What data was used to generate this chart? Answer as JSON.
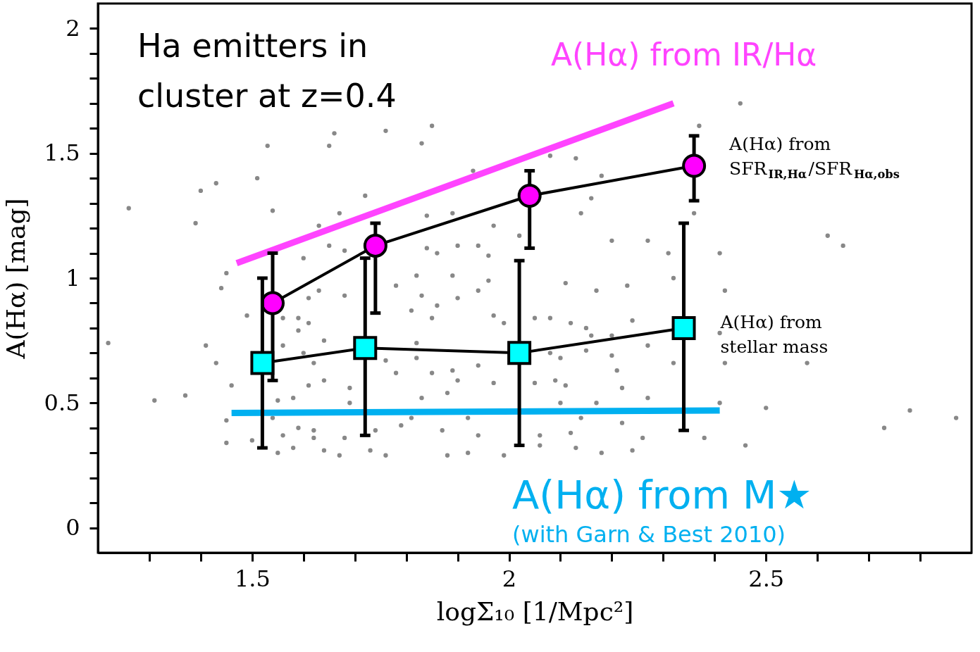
{
  "chart_data": {
    "type": "line",
    "xlabel": "logΣ₁₀ [1/Mpc²]",
    "ylabel": "A(Hα) [mag]",
    "xlim": [
      1.2,
      2.9
    ],
    "ylim": [
      -0.1,
      2.1
    ],
    "xticks": [
      {
        "value": 1.3,
        "label": null
      },
      {
        "value": 1.4,
        "label": null
      },
      1.5,
      {
        "value": 1.6,
        "label": null
      },
      {
        "value": 1.7,
        "label": null
      },
      {
        "value": 1.8,
        "label": null
      },
      {
        "value": 1.9,
        "label": null
      },
      2,
      {
        "value": 2.1,
        "label": null
      },
      {
        "value": 2.2,
        "label": null
      },
      {
        "value": 2.3,
        "label": null
      },
      {
        "value": 2.4,
        "label": null
      },
      2.5,
      {
        "value": 2.6,
        "label": null
      },
      {
        "value": 2.7,
        "label": null
      },
      {
        "value": 2.8,
        "label": null
      }
    ],
    "yticks": [
      0,
      {
        "value": 0.1,
        "label": null
      },
      {
        "value": 0.2,
        "label": null
      },
      {
        "value": 0.3,
        "label": null
      },
      {
        "value": 0.4,
        "label": null
      },
      0.5,
      {
        "value": 0.6,
        "label": null
      },
      {
        "value": 0.7,
        "label": null
      },
      {
        "value": 0.8,
        "label": null
      },
      {
        "value": 0.9,
        "label": null
      },
      1,
      {
        "value": 1.1,
        "label": null
      },
      {
        "value": 1.2,
        "label": null
      },
      {
        "value": 1.3,
        "label": null
      },
      {
        "value": 1.4,
        "label": null
      },
      1.5,
      {
        "value": 1.6,
        "label": null
      },
      {
        "value": 1.7,
        "label": null
      },
      {
        "value": 1.8,
        "label": null
      },
      {
        "value": 1.9,
        "label": null
      },
      2
    ],
    "grid": false,
    "annotations": [
      "Ha emitters in cluster at z=0.4",
      "(with Garn & Best 2010)"
    ],
    "series": [
      {
        "type": "scatter",
        "color": "#888888",
        "marker": "circle",
        "x": [
          1.26,
          1.39,
          1.4,
          1.43,
          1.51,
          1.53,
          1.65,
          1.66,
          1.76,
          1.54,
          1.67,
          1.63,
          1.72,
          1.45,
          1.44,
          1.6,
          1.65,
          1.68,
          1.61,
          1.63,
          1.68,
          1.49,
          1.56,
          1.59,
          1.61,
          1.59,
          1.22,
          1.41,
          1.56,
          1.6,
          1.64,
          1.43,
          1.62,
          1.76,
          1.46,
          1.61,
          1.64,
          1.69,
          1.31,
          1.37,
          1.55,
          1.58,
          1.69,
          1.45,
          1.54,
          1.59,
          1.62,
          1.56,
          1.62,
          1.68,
          1.74,
          1.45,
          1.5,
          1.55,
          1.58,
          1.64,
          1.67,
          1.73,
          1.76,
          1.78,
          1.78,
          1.79,
          1.83,
          1.85,
          1.93,
          2.08,
          2.13,
          2.18,
          2.16,
          2.37,
          2.36,
          1.84,
          1.89,
          1.97,
          2.02,
          2.14,
          1.84,
          1.9,
          1.94,
          1.86,
          1.96,
          1.82,
          1.89,
          1.96,
          1.94,
          1.83,
          1.9,
          1.86,
          1.81,
          1.85,
          1.97,
          1.99,
          2.05,
          2.08,
          2.11,
          2.17,
          2.23,
          2.2,
          2.27,
          2.31,
          2.32,
          2.12,
          2.15,
          2.16,
          2.2,
          2.24,
          2.27,
          1.82,
          1.82,
          2.08,
          2.1,
          2.15,
          2.2,
          1.85,
          1.89,
          1.94,
          1.9,
          1.97,
          2.05,
          2.09,
          2.11,
          2.21,
          2.22,
          2.32,
          1.88,
          1.83,
          2.1,
          2.17,
          2.27,
          1.81,
          1.92,
          2.14,
          1.87,
          1.94,
          2.06,
          2.12,
          2.22,
          2.26,
          2.38,
          2.06,
          1.88,
          1.92,
          1.99,
          2.13,
          2.18,
          2.24,
          2.45,
          2.41,
          2.42,
          2.41,
          2.42,
          2.58,
          2.41,
          2.5,
          2.78,
          2.73,
          2.46,
          2.62,
          2.65,
          2.87
        ],
        "values": [
          1.28,
          1.22,
          1.35,
          1.38,
          1.4,
          1.53,
          1.53,
          1.58,
          1.59,
          1.27,
          1.26,
          1.21,
          1.33,
          1.02,
          0.96,
          1.08,
          1.13,
          1.11,
          0.92,
          0.95,
          0.93,
          0.85,
          0.84,
          0.84,
          0.82,
          0.79,
          0.74,
          0.73,
          0.73,
          0.7,
          0.75,
          0.66,
          0.66,
          0.67,
          0.57,
          0.57,
          0.59,
          0.56,
          0.51,
          0.53,
          0.51,
          0.52,
          0.5,
          0.43,
          0.44,
          0.4,
          0.39,
          0.37,
          0.36,
          0.36,
          0.39,
          0.34,
          0.35,
          0.3,
          0.32,
          0.31,
          0.29,
          0.31,
          0.29,
          0.62,
          0.97,
          0.41,
          1.54,
          1.61,
          1.43,
          1.49,
          1.48,
          1.41,
          1.32,
          1.61,
          1.26,
          1.25,
          1.26,
          1.21,
          1.17,
          1.26,
          1.12,
          1.13,
          1.13,
          1.1,
          1.09,
          1.01,
          1.01,
          0.99,
          0.95,
          0.93,
          0.92,
          0.89,
          0.87,
          0.84,
          0.85,
          0.82,
          0.84,
          0.84,
          0.98,
          0.95,
          0.97,
          1.15,
          1.15,
          1.1,
          1.0,
          0.82,
          0.8,
          0.77,
          0.77,
          0.83,
          0.73,
          0.74,
          0.68,
          0.7,
          0.68,
          0.71,
          0.69,
          0.62,
          0.63,
          0.65,
          0.59,
          0.58,
          0.58,
          0.59,
          0.57,
          0.63,
          0.56,
          0.66,
          0.54,
          0.52,
          0.5,
          0.5,
          0.52,
          0.44,
          0.44,
          0.44,
          0.39,
          0.37,
          0.37,
          0.38,
          0.42,
          0.36,
          0.36,
          0.33,
          0.29,
          0.3,
          0.29,
          0.32,
          0.3,
          0.31,
          1.7,
          1.1,
          0.95,
          0.78,
          0.66,
          0.66,
          0.5,
          0.48,
          0.47,
          0.4,
          0.33,
          1.17,
          1.13,
          0.44
        ]
      },
      {
        "name": "A(Hα) from IR/Hα",
        "color": "#ff44ff",
        "marker": "none",
        "x": [
          1.47,
          2.32
        ],
        "values": [
          1.06,
          1.7
        ]
      },
      {
        "name": "A(Hα) from M★",
        "color": "#00b0f0",
        "marker": "none",
        "x": [
          1.46,
          2.41
        ],
        "values": [
          0.46,
          0.47
        ]
      },
      {
        "name": "A(Hα) from SFR$_{IR,Hα}$/SFR$_{Hα,obs}$",
        "color": "#ff00ff",
        "marker": "circle",
        "x": [
          1.54,
          1.74,
          2.04,
          2.36
        ],
        "values": [
          0.9,
          1.13,
          1.33,
          1.45
        ],
        "errors": [
          [
            0.59,
            1.1
          ],
          [
            0.86,
            1.22
          ],
          [
            1.12,
            1.43
          ],
          [
            1.31,
            1.57
          ]
        ]
      },
      {
        "name": "A(Hα) from stellar mass",
        "color": "#00ffff",
        "marker": "square",
        "x": [
          1.52,
          1.72,
          2.02,
          2.34
        ],
        "values": [
          0.66,
          0.72,
          0.7,
          0.8
        ],
        "errors": [
          [
            0.32,
            1.0
          ],
          [
            0.37,
            1.08
          ],
          [
            0.33,
            1.07
          ],
          [
            0.39,
            1.22
          ]
        ]
      }
    ]
  }
}
